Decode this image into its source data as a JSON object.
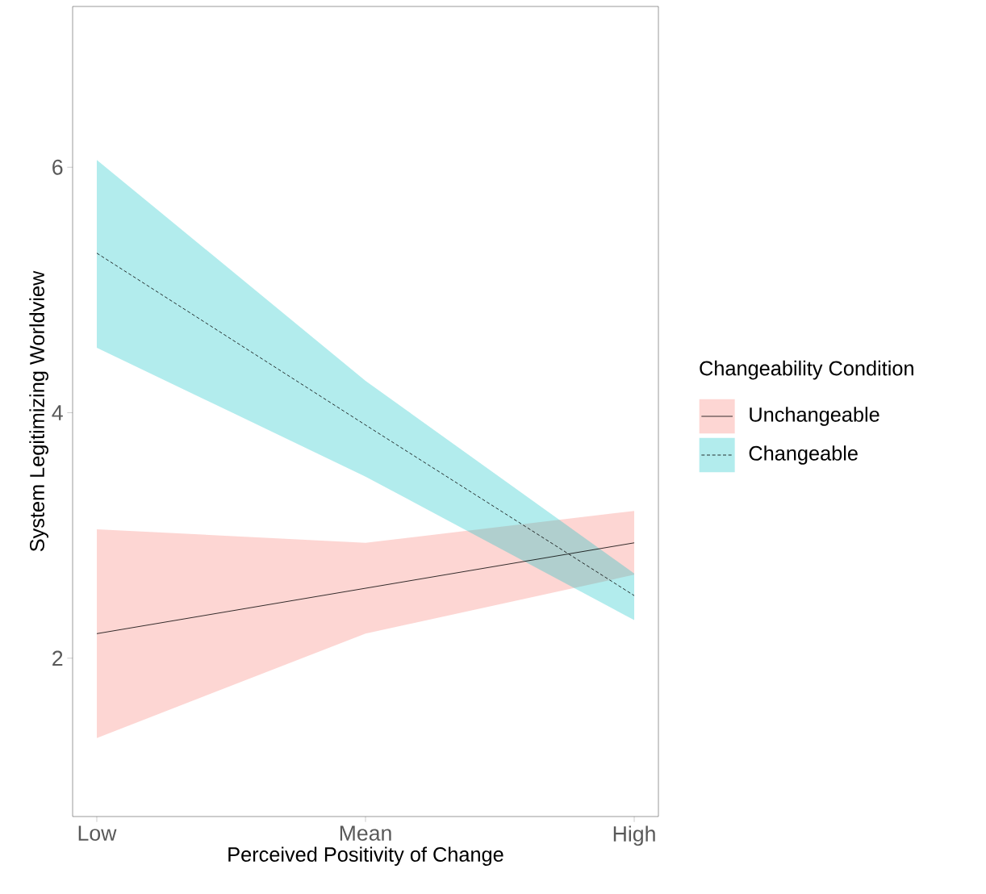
{
  "chart_data": {
    "type": "line",
    "xlabel": "Perceived Positivity of Change",
    "ylabel": "System Legitimizing Worldview",
    "legend_title": "Changeability Condition",
    "legend": "right",
    "grid": false,
    "categories": [
      "Low",
      "Mean",
      "High"
    ],
    "ylim": [
      0.71,
      7.31
    ],
    "yticks": [
      2,
      4,
      6
    ],
    "series": [
      {
        "name": "Unchangeable",
        "color": "#000000",
        "line_style": "solid",
        "values": [
          2.2,
          2.57,
          2.94
        ],
        "lower": [
          1.35,
          2.2,
          2.68
        ],
        "upper": [
          3.05,
          2.94,
          3.2
        ]
      },
      {
        "name": "Changeable",
        "color": "#000000",
        "line_style": "dashed",
        "values": [
          5.3,
          3.9,
          2.51
        ],
        "lower": [
          4.53,
          3.48,
          2.31
        ],
        "upper": [
          6.06,
          4.26,
          2.69
        ]
      }
    ]
  }
}
